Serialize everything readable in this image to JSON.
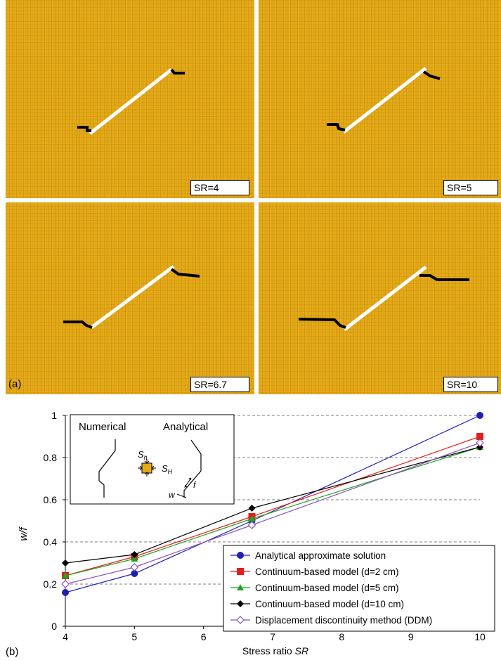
{
  "grid_color": "#E5A917",
  "grid_line_color": "#A87C10",
  "panel_a_label": "(a)",
  "panel_b_label": "(b)",
  "mesh_panels": [
    {
      "sr_label": "SR=4"
    },
    {
      "sr_label": "SR=5"
    },
    {
      "sr_label": "SR=6.7"
    },
    {
      "sr_label": "SR=10"
    }
  ],
  "inset": {
    "numerical": "Numerical",
    "analytical": "Analytical",
    "sh": "S",
    "sh_sub": "h",
    "sH": "S",
    "sH_sub": "H",
    "w": "w",
    "f": "f"
  },
  "chart_data": {
    "type": "line",
    "x_values": [
      4,
      5,
      6.7,
      10
    ],
    "xlabel": "Stress ratio SR",
    "xlabel_main": "Stress ratio ",
    "xlabel_italic": "SR",
    "ylabel": "w/f",
    "xlim": [
      4,
      10
    ],
    "ylim": [
      0,
      1
    ],
    "x_ticks": [
      4,
      5,
      6,
      7,
      8,
      9,
      10
    ],
    "y_ticks": [
      0,
      0.2,
      0.4,
      0.6,
      0.8,
      1
    ],
    "y_tick_labels": [
      "0",
      "0.2",
      "0.4",
      "0.6",
      "0.8",
      "1"
    ],
    "grid": "horizontal dashed",
    "legend_placement": "bottom-right",
    "series": [
      {
        "name": "Analytical approximate solution",
        "color": "#1F1FB4",
        "marker": "circle",
        "values": [
          0.16,
          0.25,
          0.5,
          1.0
        ]
      },
      {
        "name": "Continuum-based model (d=2 cm)",
        "color": "#E81C1C",
        "marker": "square",
        "values": [
          0.24,
          0.33,
          0.52,
          0.9
        ]
      },
      {
        "name": "Continuum-based model (d=5 cm)",
        "color": "#1FA51F",
        "marker": "triangle",
        "values": [
          0.24,
          0.32,
          0.51,
          0.85
        ]
      },
      {
        "name": "Continuum-based model (d=10 cm)",
        "color": "#000000",
        "marker": "diamond",
        "values": [
          0.3,
          0.34,
          0.56,
          0.85
        ]
      },
      {
        "name": "Displacement discontinuity method (DDM)",
        "color": "#8A4FBF",
        "marker": "open-diamond",
        "values": [
          0.2,
          0.28,
          0.48,
          0.87
        ]
      }
    ]
  }
}
